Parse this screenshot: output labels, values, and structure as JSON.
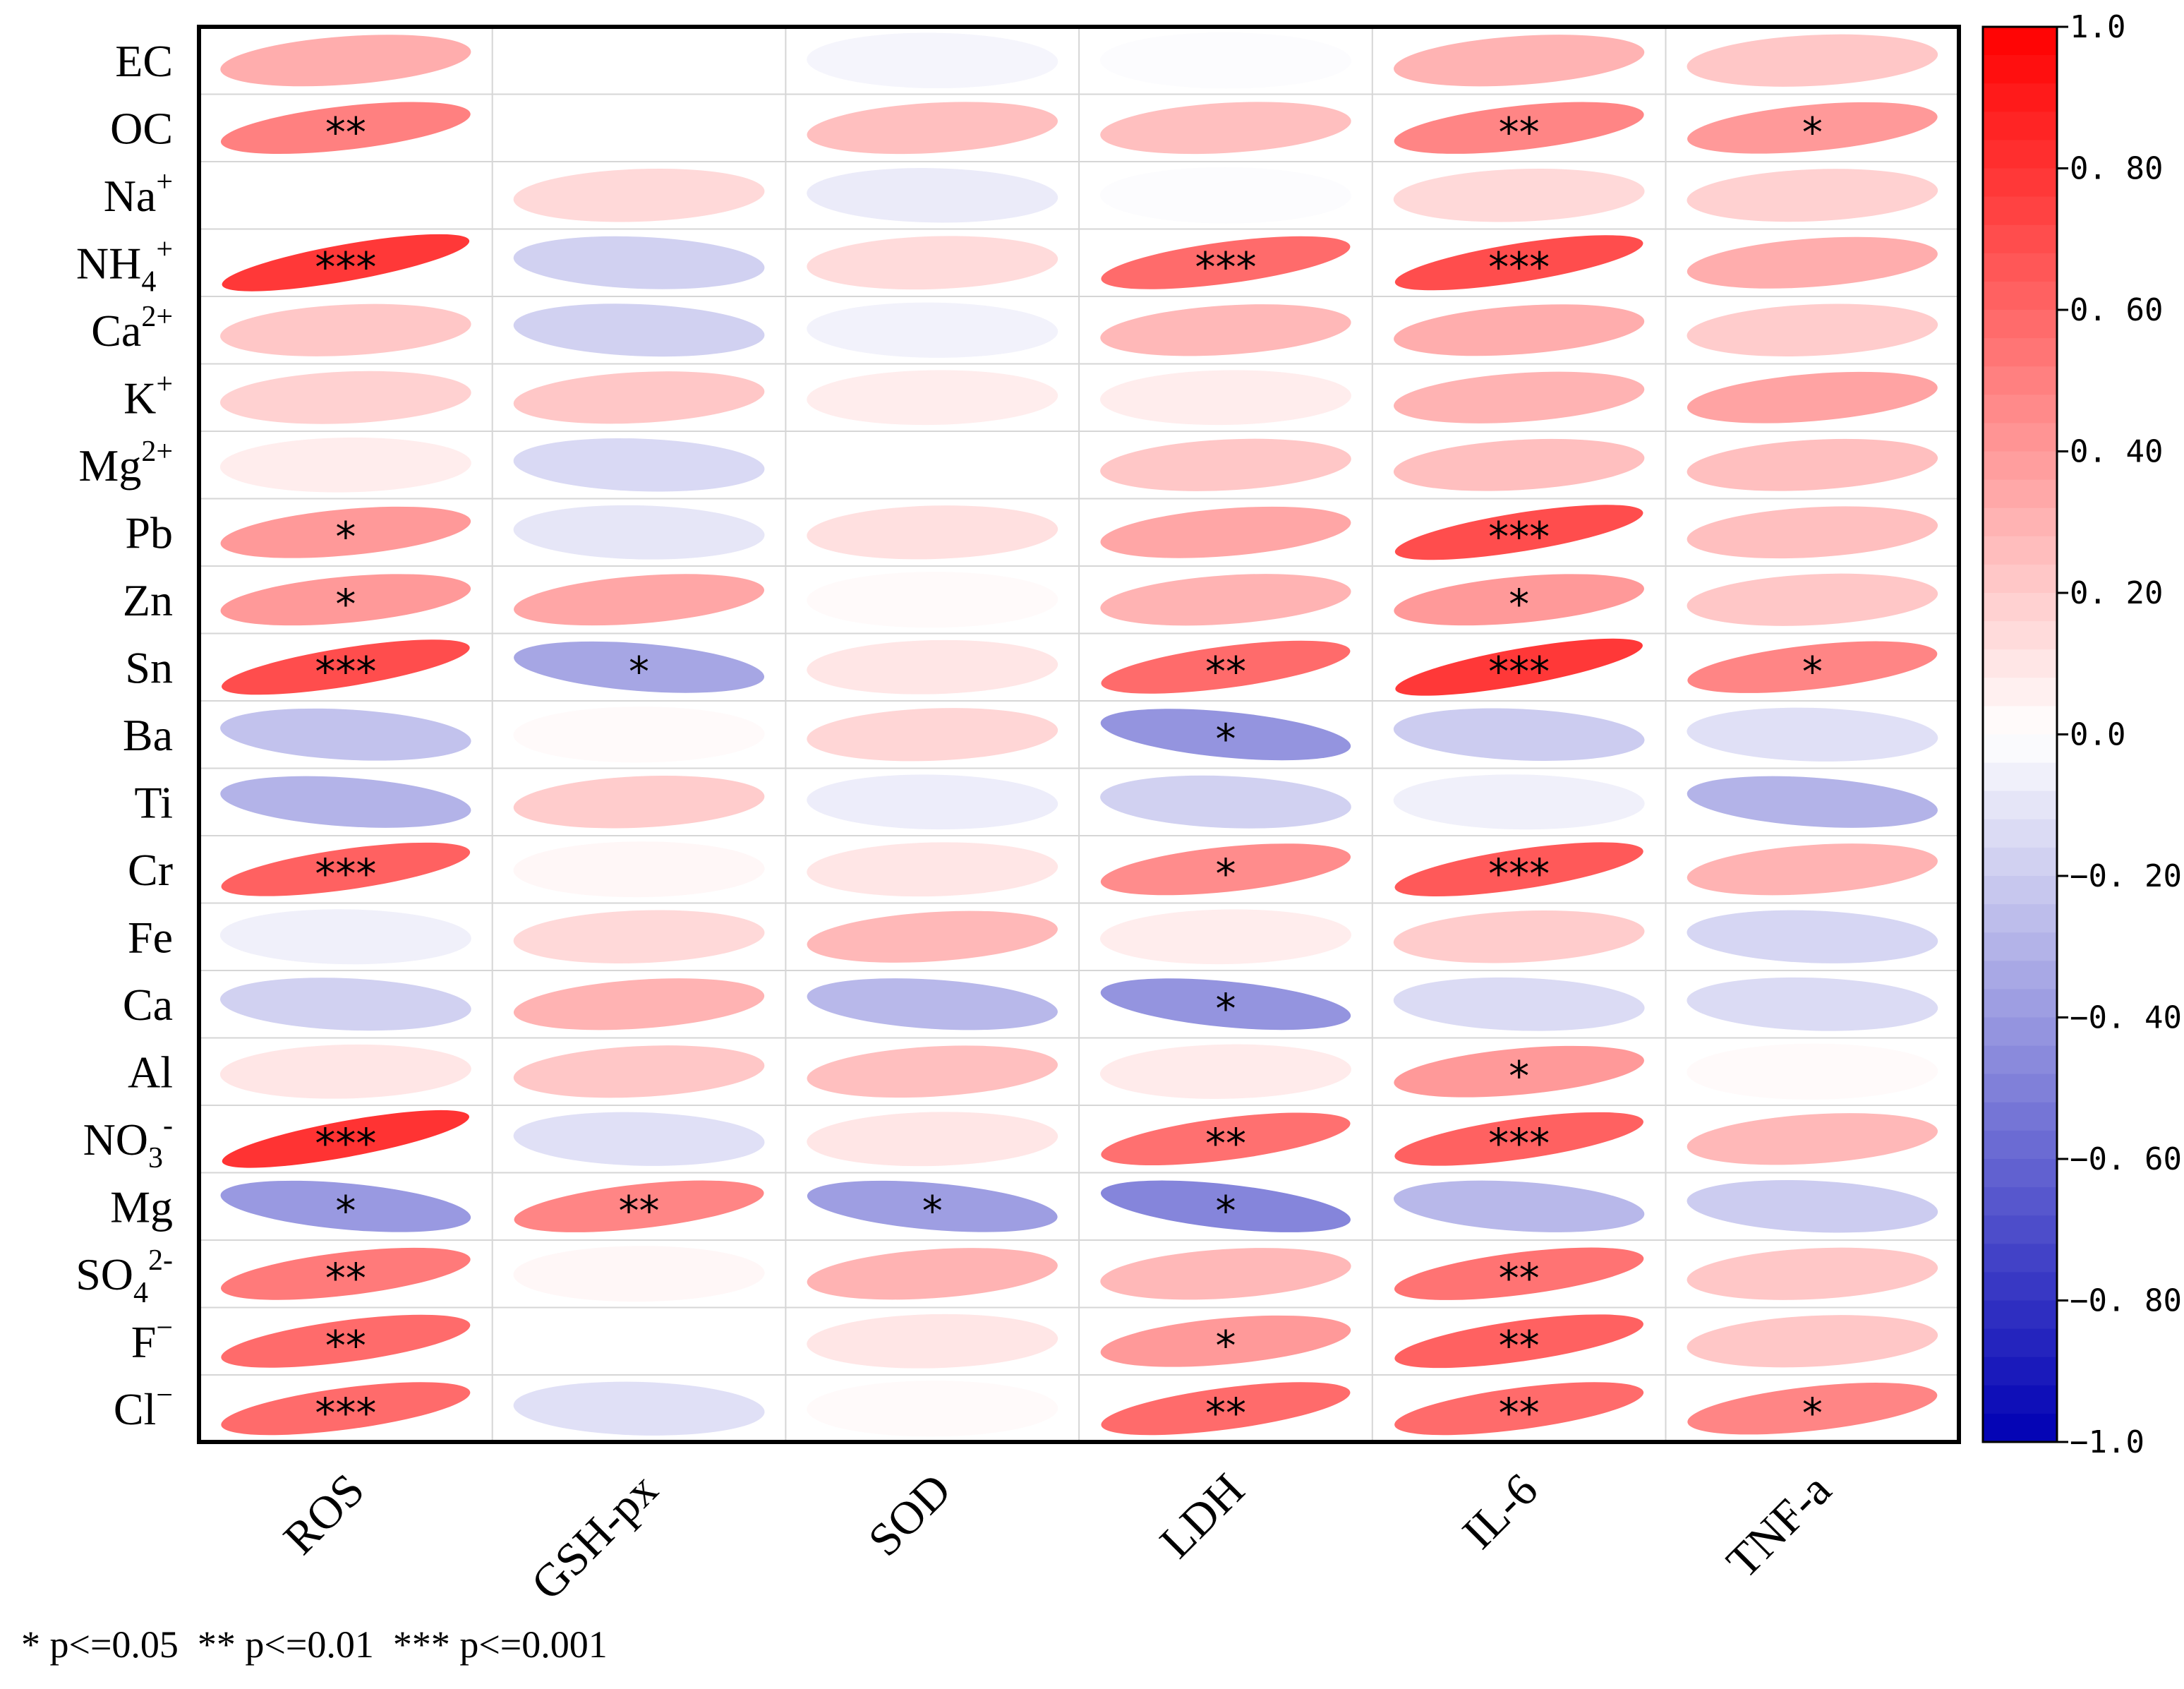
{
  "chart_data": {
    "type": "heatmap",
    "style": "correlation-ellipses",
    "columns": [
      "ROS",
      "GSH-px",
      "SOD",
      "LDH",
      "IL-6",
      "TNF-a"
    ],
    "rows": [
      {
        "base": "EC",
        "sup": "",
        "sub": ""
      },
      {
        "base": "OC",
        "sup": "",
        "sub": ""
      },
      {
        "base": "Na",
        "sup": "+",
        "sub": ""
      },
      {
        "base": "NH",
        "sup": "+",
        "sub": "4"
      },
      {
        "base": "Ca",
        "sup": "2+",
        "sub": ""
      },
      {
        "base": "K",
        "sup": "+",
        "sub": ""
      },
      {
        "base": "Mg",
        "sup": "2+",
        "sub": ""
      },
      {
        "base": "Pb",
        "sup": "",
        "sub": ""
      },
      {
        "base": "Zn",
        "sup": "",
        "sub": ""
      },
      {
        "base": "Sn",
        "sup": "",
        "sub": ""
      },
      {
        "base": "Ba",
        "sup": "",
        "sub": ""
      },
      {
        "base": "Ti",
        "sup": "",
        "sub": ""
      },
      {
        "base": "Cr",
        "sup": "",
        "sub": ""
      },
      {
        "base": "Fe",
        "sup": "",
        "sub": ""
      },
      {
        "base": "Ca",
        "sup": "",
        "sub": ""
      },
      {
        "base": "Al",
        "sup": "",
        "sub": ""
      },
      {
        "base": "NO",
        "sup": "-",
        "sub": "3"
      },
      {
        "base": "Mg",
        "sup": "",
        "sub": ""
      },
      {
        "base": "SO",
        "sup": "2-",
        "sub": "4"
      },
      {
        "base": "F",
        "sup": "−",
        "sub": ""
      },
      {
        "base": "Cl",
        "sup": "−",
        "sub": ""
      }
    ],
    "values": [
      [
        0.32,
        0.0,
        -0.04,
        -0.01,
        0.3,
        0.22
      ],
      [
        0.5,
        0.0,
        0.25,
        0.25,
        0.48,
        0.4
      ],
      [
        0.0,
        0.15,
        -0.08,
        -0.01,
        0.15,
        0.18
      ],
      [
        0.78,
        -0.18,
        0.14,
        0.58,
        0.7,
        0.32
      ],
      [
        0.22,
        -0.18,
        -0.05,
        0.28,
        0.32,
        0.2
      ],
      [
        0.18,
        0.22,
        0.07,
        0.07,
        0.3,
        0.36
      ],
      [
        0.07,
        -0.15,
        0.0,
        0.22,
        0.25,
        0.25
      ],
      [
        0.4,
        -0.1,
        0.12,
        0.35,
        0.7,
        0.25
      ],
      [
        0.4,
        0.35,
        0.02,
        0.3,
        0.4,
        0.22
      ],
      [
        0.7,
        -0.35,
        0.1,
        0.58,
        0.78,
        0.48
      ],
      [
        -0.24,
        0.02,
        0.16,
        -0.42,
        -0.2,
        -0.12
      ],
      [
        -0.3,
        0.2,
        -0.07,
        -0.18,
        -0.06,
        -0.3
      ],
      [
        0.62,
        0.03,
        0.1,
        0.45,
        0.65,
        0.3
      ],
      [
        -0.06,
        0.15,
        0.28,
        0.07,
        0.2,
        -0.16
      ],
      [
        -0.18,
        0.3,
        -0.28,
        -0.42,
        -0.14,
        -0.14
      ],
      [
        0.1,
        0.22,
        0.25,
        0.08,
        0.4,
        0.02
      ],
      [
        0.8,
        -0.12,
        0.1,
        0.56,
        0.62,
        0.28
      ],
      [
        -0.4,
        0.48,
        -0.38,
        -0.48,
        -0.28,
        -0.2
      ],
      [
        0.52,
        0.03,
        0.3,
        0.28,
        0.55,
        0.22
      ],
      [
        0.58,
        0.0,
        0.1,
        0.4,
        0.62,
        0.22
      ],
      [
        0.58,
        -0.12,
        0.02,
        0.58,
        0.58,
        0.48
      ]
    ],
    "significance": [
      [
        "",
        "",
        "",
        "",
        "",
        ""
      ],
      [
        "**",
        "",
        "",
        "",
        "**",
        "*"
      ],
      [
        "",
        "",
        "",
        "",
        "",
        ""
      ],
      [
        "***",
        "",
        "",
        "***",
        "***",
        ""
      ],
      [
        "",
        "",
        "",
        "",
        "",
        ""
      ],
      [
        "",
        "",
        "",
        "",
        "",
        ""
      ],
      [
        "",
        "",
        "",
        "",
        "",
        ""
      ],
      [
        "*",
        "",
        "",
        "",
        "***",
        ""
      ],
      [
        "*",
        "",
        "",
        "",
        "*",
        ""
      ],
      [
        "***",
        "*",
        "",
        "**",
        "***",
        "*"
      ],
      [
        "",
        "",
        "",
        "*",
        "",
        ""
      ],
      [
        "",
        "",
        "",
        "",
        "",
        ""
      ],
      [
        "***",
        "",
        "",
        "*",
        "***",
        ""
      ],
      [
        "",
        "",
        "",
        "",
        "",
        ""
      ],
      [
        "",
        "",
        "",
        "*",
        "",
        ""
      ],
      [
        "",
        "",
        "",
        "",
        "*",
        ""
      ],
      [
        "***",
        "",
        "",
        "**",
        "***",
        ""
      ],
      [
        "*",
        "**",
        "*",
        "*",
        "",
        ""
      ],
      [
        "**",
        "",
        "",
        "",
        "**",
        ""
      ],
      [
        "**",
        "",
        "",
        "*",
        "**",
        ""
      ],
      [
        "***",
        "",
        "",
        "**",
        "**",
        "*"
      ]
    ],
    "colorscale": {
      "min": -1.0,
      "max": 1.0,
      "colors": [
        "#0000b3",
        "#ffffff",
        "#ff0000"
      ],
      "ticks": [
        "1.0",
        "0. 80",
        "0. 60",
        "0. 40",
        "0. 20",
        "0.0",
        "−0. 20",
        "−0. 40",
        "−0. 60",
        "−0. 80",
        "−1.0"
      ],
      "tick_values": [
        1.0,
        0.8,
        0.6,
        0.4,
        0.2,
        0.0,
        -0.2,
        -0.4,
        -0.6,
        -0.8,
        -1.0
      ]
    },
    "legend_position": "right",
    "grid": true,
    "significance_note": "* p<=0.05  ** p<=0.01  *** p<=0.001"
  }
}
